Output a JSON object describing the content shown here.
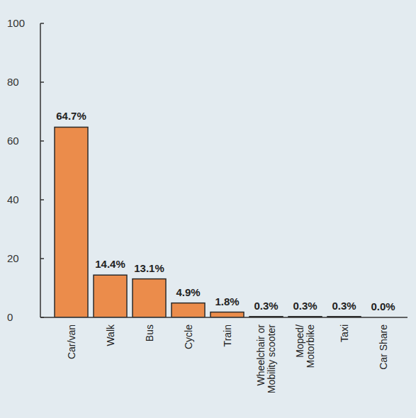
{
  "chart_data": {
    "type": "bar",
    "categories": [
      "Car/van",
      "Walk",
      "Bus",
      "Cycle",
      "Train",
      "Wheelchair or Mobility scooter",
      "Moped/ Motorbike",
      "Taxi",
      "Car Share"
    ],
    "values": [
      64.7,
      14.4,
      13.1,
      4.9,
      1.8,
      0.3,
      0.3,
      0.3,
      0
    ],
    "value_labels": [
      "64.7%",
      "14.4%",
      "13.1%",
      "4.9%",
      "1.8%",
      "0.3%",
      "0.3%",
      "0.3%",
      "0.0%"
    ],
    "color": "#eb8c4b",
    "ylim": [
      0,
      100
    ],
    "yticks": [
      0,
      20,
      40,
      60,
      80,
      100
    ],
    "grid": false,
    "data_labels": true
  }
}
